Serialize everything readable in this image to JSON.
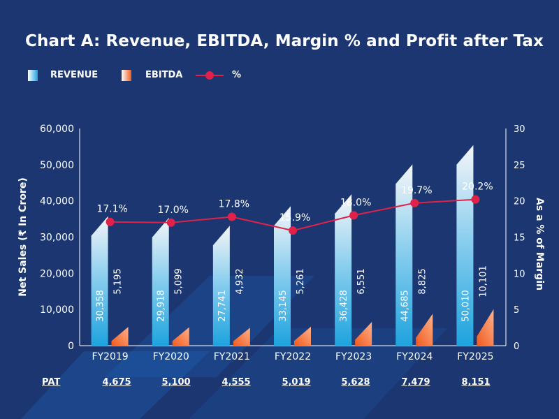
{
  "chart_data": {
    "type": "bar",
    "title": "Chart A: Revenue, EBITDA, Margin % and Profit after Tax",
    "categories": [
      "FY2019",
      "FY2020",
      "FY2021",
      "FY2022",
      "FY2023",
      "FY2024",
      "FY2025"
    ],
    "series": [
      {
        "name": "REVENUE",
        "values": [
          30358,
          29918,
          27741,
          33145,
          36428,
          44685,
          50010
        ],
        "labels": [
          "30,358",
          "29,918",
          "27,741",
          "33,145",
          "36,428",
          "44,685",
          "50,010"
        ],
        "color": "#1ea3de"
      },
      {
        "name": "EBITDA",
        "values": [
          5195,
          5099,
          4932,
          5261,
          6551,
          8825,
          10101
        ],
        "labels": [
          "5,195",
          "5,099",
          "4,932",
          "5,261",
          "6,551",
          "8,825",
          "10,101"
        ],
        "color": "#f05a1e"
      },
      {
        "name": "%",
        "type": "line",
        "axis": "right",
        "values": [
          17.1,
          17.0,
          17.8,
          15.9,
          18.0,
          19.7,
          20.2
        ],
        "labels": [
          "17.1%",
          "17.0%",
          "17.8%",
          "15.9%",
          "18.0%",
          "19.7%",
          "20.2%"
        ],
        "color": "#e0224a"
      }
    ],
    "ylabel": "Net Sales (₹ In Crore)",
    "y2label": "As a % of Margin",
    "ylim": [
      0,
      60000
    ],
    "y2lim": [
      0,
      30
    ],
    "yticks": [
      "0",
      "10,000",
      "20,000",
      "30,000",
      "40,000",
      "50,000",
      "60,000"
    ],
    "y2ticks": [
      "0",
      "5",
      "10",
      "15",
      "20",
      "25",
      "30"
    ],
    "grid": false,
    "legend": "top-left"
  },
  "pat": {
    "label": "PAT",
    "values": [
      "4,675",
      "5,100",
      "4,555",
      "5,019",
      "5,628",
      "7,479",
      "8,151"
    ]
  },
  "colors": {
    "background": "#1b3670",
    "revenue": "#1ea3de",
    "ebitda": "#f05a1e",
    "margin_line": "#e0224a",
    "decor": "#1f63b8"
  }
}
